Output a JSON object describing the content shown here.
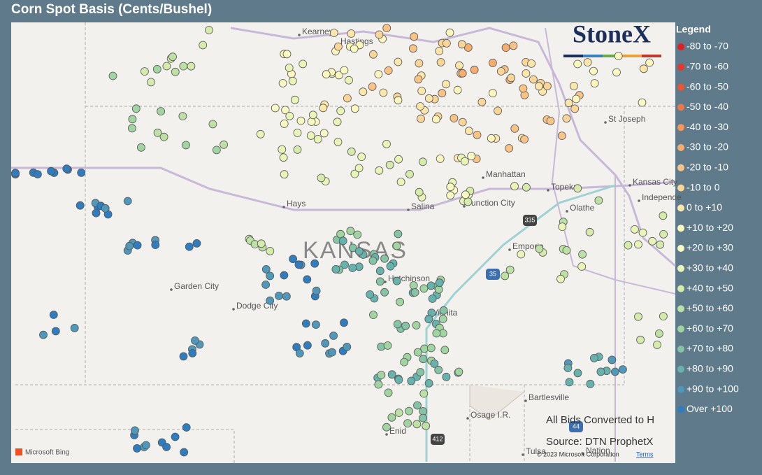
{
  "header": {
    "title": "Corn Spot Basis (Cents/Bushel)"
  },
  "logo": "StoneX",
  "legend": {
    "title": "Legend",
    "items": [
      {
        "label": "-80 to -70",
        "color": "#e0201e"
      },
      {
        "label": "-70 to -60",
        "color": "#e5382a"
      },
      {
        "label": "-60 to -50",
        "color": "#ea5533"
      },
      {
        "label": "-50 to -40",
        "color": "#ef7646"
      },
      {
        "label": "-40 to -30",
        "color": "#f3975a"
      },
      {
        "label": "-30 to -20",
        "color": "#f6ad6e"
      },
      {
        "label": "-20 to -10",
        "color": "#f9c385"
      },
      {
        "label": "-10 to 0",
        "color": "#fbd597"
      },
      {
        "label": "0 to +10",
        "color": "#fde6aa"
      },
      {
        "label": "+10 to +20",
        "color": "#fef7bd"
      },
      {
        "label": "+20 to +30",
        "color": "#f8f9c3"
      },
      {
        "label": "+30 to +40",
        "color": "#e9f4b7"
      },
      {
        "label": "+40 to +50",
        "color": "#d5ebab"
      },
      {
        "label": "+50 to +60",
        "color": "#bde1a4"
      },
      {
        "label": "+60 to +70",
        "color": "#a0d4a0"
      },
      {
        "label": "+70 to +80",
        "color": "#84c4a5"
      },
      {
        "label": "+80 to +90",
        "color": "#68b2ae"
      },
      {
        "label": "+90 to +100",
        "color": "#4f98b9"
      },
      {
        "label": "Over +100",
        "color": "#2f7dbf"
      }
    ]
  },
  "places": [
    "Kearney",
    "Hastings",
    "St Joseph",
    "Kansas City",
    "Independe",
    "Manhattan",
    "Topeka",
    "Junction City",
    "Salina",
    "Hays",
    "Olathe",
    "Emporia",
    "Hutchinson",
    "Wichita",
    "Garden City",
    "Dodge City",
    "Bartlesville",
    "Osage I.R.",
    "Enid",
    "Tulsa",
    "Nation"
  ],
  "state_label": "KANSAS",
  "shields": [
    "335",
    "35",
    "412",
    "44"
  ],
  "notes": [
    "All Bids Converted to H",
    "Source: DTN ProphetX"
  ],
  "attribution": {
    "bing": "Microsoft Bing",
    "copyright": "© 2023 Microsoft Corporation",
    "terms": "Terms"
  }
}
